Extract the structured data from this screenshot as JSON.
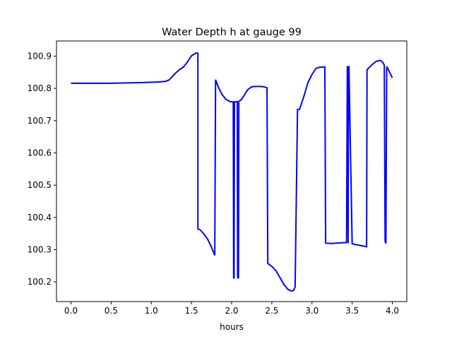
{
  "chart_data": {
    "type": "line",
    "title": "Water Depth h at gauge 99",
    "xlabel": "hours",
    "ylabel": "",
    "xlim": [
      -0.18,
      4.18
    ],
    "ylim": [
      100.139,
      100.947
    ],
    "xticks": [
      0.0,
      0.5,
      1.0,
      1.5,
      2.0,
      2.5,
      3.0,
      3.5,
      4.0
    ],
    "xtick_labels": [
      "0.0",
      "0.5",
      "1.0",
      "1.5",
      "2.0",
      "2.5",
      "3.0",
      "3.5",
      "4.0"
    ],
    "yticks": [
      100.2,
      100.3,
      100.4,
      100.5,
      100.6,
      100.7,
      100.8,
      100.9
    ],
    "ytick_labels": [
      "100.2",
      "100.3",
      "100.4",
      "100.5",
      "100.6",
      "100.7",
      "100.8",
      "100.9"
    ],
    "grid": false,
    "series": [
      {
        "color": "#0000ff",
        "x": [
          0.0,
          0.5,
          0.9,
          1.1,
          1.18,
          1.22,
          1.26,
          1.3,
          1.35,
          1.4,
          1.45,
          1.5,
          1.55,
          1.58,
          1.58,
          1.61,
          1.65,
          1.7,
          1.75,
          1.79,
          1.8,
          1.84,
          1.88,
          1.93,
          1.98,
          2.02,
          2.025,
          2.03,
          2.035,
          2.07,
          2.075,
          2.085,
          2.09,
          2.12,
          2.16,
          2.2,
          2.25,
          2.3,
          2.35,
          2.4,
          2.44,
          2.45,
          2.5,
          2.55,
          2.6,
          2.65,
          2.7,
          2.74,
          2.77,
          2.79,
          2.82,
          2.84,
          2.845,
          2.9,
          2.95,
          3.0,
          3.05,
          3.1,
          3.14,
          3.16,
          3.17,
          3.25,
          3.35,
          3.43,
          3.44,
          3.445,
          3.45,
          3.455,
          3.46,
          3.5,
          3.6,
          3.68,
          3.685,
          3.75,
          3.8,
          3.85,
          3.88,
          3.9,
          3.91,
          3.915,
          3.92,
          3.93,
          3.935,
          3.96,
          4.0
        ],
        "y": [
          100.816,
          100.816,
          100.818,
          100.82,
          100.822,
          100.826,
          100.836,
          100.847,
          100.858,
          100.866,
          100.882,
          100.901,
          100.909,
          100.909,
          100.364,
          100.361,
          100.35,
          100.333,
          100.307,
          100.282,
          100.827,
          100.801,
          100.781,
          100.766,
          100.759,
          100.758,
          100.212,
          100.212,
          100.758,
          100.759,
          100.213,
          100.213,
          100.76,
          100.765,
          100.78,
          100.796,
          100.805,
          100.806,
          100.806,
          100.805,
          100.802,
          100.257,
          100.248,
          100.235,
          100.214,
          100.192,
          100.177,
          100.172,
          100.173,
          100.184,
          100.735,
          100.735,
          100.735,
          100.776,
          100.818,
          100.843,
          100.862,
          100.866,
          100.866,
          100.866,
          100.32,
          100.319,
          100.321,
          100.322,
          100.867,
          100.867,
          100.32,
          100.867,
          100.867,
          100.318,
          100.313,
          100.309,
          100.858,
          100.874,
          100.884,
          100.887,
          100.881,
          100.872,
          100.328,
          100.322,
          100.319,
          100.866,
          100.866,
          100.853,
          100.833
        ]
      }
    ]
  }
}
